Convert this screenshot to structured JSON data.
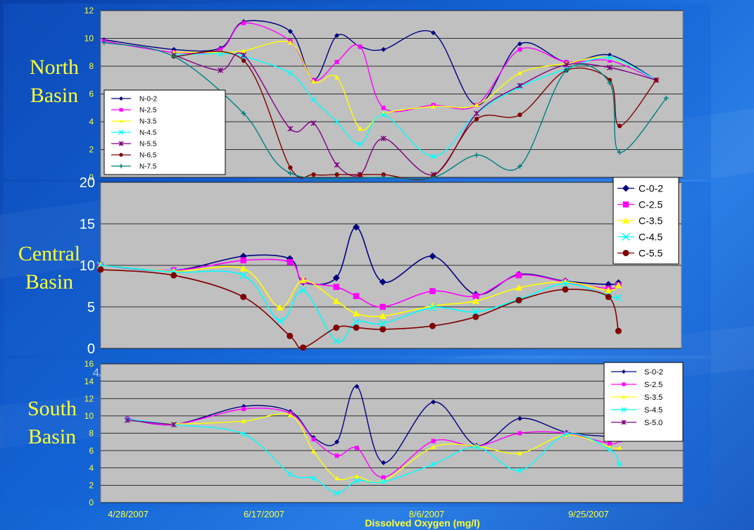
{
  "x_axis_title": "Dissolved Oxygen (mg/l)",
  "colors": {
    "plot_background": "#c0c0c0",
    "yellow_text": "#ffff33"
  },
  "chart_data": [
    {
      "type": "line",
      "id": "north",
      "panel_label": [
        "North",
        "Basin"
      ],
      "ylim": [
        0,
        12
      ],
      "yticks": [
        "0",
        "2",
        "4",
        "6",
        "8",
        "10",
        "12"
      ],
      "xlim_days": [
        0,
        175
      ],
      "xtick_labels": [
        "4/28/07",
        "6/17/07",
        "8/6/07",
        "9/25/07"
      ],
      "legend_position": "bottom-left",
      "x_dates": [
        "5/6/07",
        "5/20/07",
        "6/3/07",
        "6/17/07",
        "6/24/07",
        "7/1/07",
        "7/8/07",
        "7/15/07",
        "7/22/07",
        "7/29/07",
        "8/6/07",
        "8/19/07",
        "9/1/07",
        "9/15/07",
        "9/28/07",
        "10/12/07"
      ],
      "series": [
        {
          "name": "N-0-2",
          "color": "#000080",
          "marker": "diamond",
          "x": [
            "4/29/07",
            "5/20/07",
            "6/3/07",
            "6/10/07",
            "6/24/07",
            "7/1/07",
            "7/8/07",
            "7/15/07",
            "7/22/07",
            "8/6/07",
            "8/19/07",
            "9/1/07",
            "9/15/07",
            "9/28/07",
            "10/12/07"
          ],
          "values": [
            9.9,
            9.2,
            9.3,
            11.2,
            10.5,
            7.0,
            10.2,
            9.4,
            9.2,
            10.4,
            5.2,
            9.6,
            8.3,
            8.8,
            7.0
          ]
        },
        {
          "name": "N-2.5",
          "color": "#ff00ff",
          "marker": "square",
          "x": [
            "4/29/07",
            "5/20/07",
            "6/3/07",
            "6/10/07",
            "6/24/07",
            "7/1/07",
            "7/8/07",
            "7/15/07",
            "7/22/07",
            "8/6/07",
            "8/19/07",
            "9/1/07",
            "9/15/07",
            "9/28/07",
            "10/12/07"
          ],
          "values": [
            9.8,
            9.0,
            9.2,
            11.1,
            9.8,
            7.0,
            8.3,
            9.4,
            5.0,
            5.2,
            5.2,
            9.2,
            8.3,
            8.4,
            7.0
          ]
        },
        {
          "name": "N-3.5",
          "color": "#ffff00",
          "marker": "triangle",
          "x": [
            "5/20/07",
            "6/3/07",
            "6/10/07",
            "6/24/07",
            "7/1/07",
            "7/8/07",
            "7/15/07",
            "7/22/07",
            "8/6/07",
            "8/19/07",
            "9/1/07",
            "9/15/07",
            "9/28/07",
            "10/12/07"
          ],
          "values": [
            9.0,
            9.0,
            9.1,
            9.7,
            6.9,
            7.2,
            3.5,
            4.6,
            5.1,
            5.2,
            7.5,
            8.2,
            8.6,
            7.0
          ]
        },
        {
          "name": "N-4.5",
          "color": "#00ffff",
          "marker": "x",
          "x": [
            "5/20/07",
            "6/3/07",
            "6/10/07",
            "6/24/07",
            "7/1/07",
            "7/8/07",
            "7/15/07",
            "7/22/07",
            "8/6/07",
            "8/19/07",
            "9/1/07",
            "9/15/07",
            "9/28/07",
            "10/12/07"
          ],
          "values": [
            8.8,
            8.9,
            8.7,
            7.5,
            5.6,
            4.0,
            2.4,
            4.5,
            1.5,
            4.6,
            6.5,
            7.8,
            8.6,
            7.0
          ]
        },
        {
          "name": "N-5.5",
          "color": "#800080",
          "marker": "star",
          "x": [
            "5/20/07",
            "6/3/07",
            "6/10/07",
            "6/24/07",
            "7/1/07",
            "7/8/07",
            "7/15/07",
            "7/22/07",
            "8/6/07",
            "8/19/07",
            "9/1/07",
            "9/15/07",
            "9/28/07",
            "10/12/07"
          ],
          "values": [
            8.8,
            7.7,
            8.8,
            3.5,
            3.9,
            0.9,
            0.2,
            2.8,
            0.2,
            4.6,
            6.6,
            8.1,
            7.9,
            7.0
          ]
        },
        {
          "name": "N-6.5",
          "color": "#800000",
          "marker": "circle",
          "x": [
            "5/20/07",
            "6/10/07",
            "6/24/07",
            "7/1/07",
            "7/8/07",
            "7/15/07",
            "7/22/07",
            "8/6/07",
            "8/19/07",
            "9/1/07",
            "9/15/07",
            "9/28/07",
            "10/1/07",
            "10/12/07"
          ],
          "values": [
            8.7,
            8.4,
            0.7,
            0.2,
            0.2,
            0.2,
            0.2,
            0.1,
            4.2,
            4.5,
            7.7,
            7.0,
            3.7,
            7.0
          ]
        },
        {
          "name": "N-7.5",
          "color": "#008080",
          "marker": "plus",
          "x": [
            "4/29/07",
            "5/20/07",
            "6/10/07",
            "6/24/07",
            "7/22/07",
            "8/6/07",
            "8/19/07",
            "9/1/07",
            "9/15/07",
            "9/28/07",
            "10/1/07",
            "10/15/07"
          ],
          "values": [
            9.7,
            8.7,
            4.6,
            0.3,
            0.0,
            0.0,
            1.6,
            0.8,
            7.7,
            6.8,
            1.8,
            5.7
          ]
        }
      ]
    },
    {
      "type": "line",
      "id": "central",
      "panel_label": [
        "Central",
        "Basin"
      ],
      "ylim": [
        0,
        20
      ],
      "yticks": [
        "0",
        "5",
        "10",
        "15",
        "20"
      ],
      "xlim_days": [
        0,
        175
      ],
      "xtick_labels": [
        "4/28/07",
        "6/17/07",
        "8/6/07",
        "9/25/07"
      ],
      "legend_position": "top-right",
      "series": [
        {
          "name": "C-0-2",
          "color": "#000080",
          "marker": "diamond",
          "x": [
            "4/28/07",
            "5/20/07",
            "6/10/07",
            "6/24/07",
            "6/28/07",
            "7/8/07",
            "7/14/07",
            "7/22/07",
            "8/6/07",
            "8/19/07",
            "9/1/07",
            "9/15/07",
            "9/28/07",
            "10/1/07"
          ],
          "values": [
            10.0,
            9.4,
            11.1,
            10.8,
            8.0,
            8.5,
            14.6,
            8.0,
            11.1,
            6.5,
            8.9,
            8.1,
            7.7,
            7.9
          ]
        },
        {
          "name": "C-2.5",
          "color": "#ff00ff",
          "marker": "square",
          "x": [
            "4/28/07",
            "5/20/07",
            "6/10/07",
            "6/24/07",
            "6/28/07",
            "7/8/07",
            "7/14/07",
            "7/22/07",
            "8/6/07",
            "8/19/07",
            "9/1/07",
            "9/15/07",
            "9/28/07",
            "10/1/07"
          ],
          "values": [
            10.0,
            9.4,
            10.6,
            10.4,
            8.1,
            7.4,
            6.3,
            5.0,
            6.9,
            6.3,
            8.8,
            8.0,
            7.2,
            7.6
          ]
        },
        {
          "name": "C-3.5",
          "color": "#ffff00",
          "marker": "triangle",
          "x": [
            "4/28/07",
            "5/20/07",
            "6/10/07",
            "6/21/07",
            "6/28/07",
            "7/8/07",
            "7/14/07",
            "7/22/07",
            "8/6/07",
            "8/19/07",
            "9/1/07",
            "9/15/07",
            "9/28/07",
            "10/1/07"
          ],
          "values": [
            10.0,
            9.3,
            9.6,
            4.9,
            8.2,
            5.7,
            4.2,
            3.9,
            5.1,
            5.7,
            7.3,
            8.0,
            7.0,
            7.6
          ]
        },
        {
          "name": "C-4.5",
          "color": "#00ffff",
          "marker": "x",
          "x": [
            "4/28/07",
            "5/20/07",
            "6/10/07",
            "6/21/07",
            "6/28/07",
            "7/8/07",
            "7/14/07",
            "7/22/07",
            "8/6/07",
            "8/19/07",
            "9/1/07",
            "9/15/07",
            "9/28/07",
            "10/1/07"
          ],
          "values": [
            10.0,
            9.2,
            8.8,
            3.3,
            7.0,
            0.9,
            3.2,
            3.0,
            4.9,
            4.4,
            5.9,
            7.8,
            6.3,
            6.1
          ]
        },
        {
          "name": "C-5.5",
          "color": "#800000",
          "marker": "circle",
          "x": [
            "4/28/07",
            "5/20/07",
            "6/10/07",
            "6/24/07",
            "6/28/07",
            "7/8/07",
            "7/14/07",
            "7/22/07",
            "8/6/07",
            "8/19/07",
            "9/1/07",
            "9/15/07",
            "9/28/07",
            "10/1/07"
          ],
          "values": [
            9.5,
            8.8,
            6.2,
            1.5,
            0.1,
            2.5,
            2.5,
            2.3,
            2.7,
            3.8,
            5.8,
            7.1,
            6.2,
            2.1
          ]
        }
      ]
    },
    {
      "type": "line",
      "id": "south",
      "panel_label": [
        "South",
        "Basin"
      ],
      "ylim": [
        0,
        16
      ],
      "yticks": [
        "0",
        "2",
        "4",
        "6",
        "8",
        "10",
        "12",
        "14",
        "16"
      ],
      "xlim_days": [
        0,
        175
      ],
      "xtick_labels": [
        "4/28/2007",
        "6/17/2007",
        "8/6/2007",
        "9/25/2007"
      ],
      "legend_position": "top-right",
      "series": [
        {
          "name": "S-0-2",
          "color": "#000080",
          "marker": "diamond",
          "x": [
            "5/6/07",
            "5/20/07",
            "6/10/07",
            "6/24/07",
            "7/1/07",
            "7/8/07",
            "7/14/07",
            "7/22/07",
            "8/6/07",
            "8/19/07",
            "9/1/07",
            "9/15/07",
            "9/28/07",
            "10/1/07"
          ],
          "values": [
            9.7,
            9.0,
            11.1,
            10.5,
            7.5,
            7.0,
            13.4,
            4.6,
            11.6,
            6.6,
            9.7,
            8.1,
            7.6,
            7.3
          ]
        },
        {
          "name": "S-2.5",
          "color": "#ff00ff",
          "marker": "square",
          "x": [
            "5/6/07",
            "5/20/07",
            "6/10/07",
            "6/24/07",
            "7/1/07",
            "7/8/07",
            "7/14/07",
            "7/22/07",
            "8/6/07",
            "8/19/07",
            "9/1/07",
            "9/15/07",
            "9/28/07",
            "10/1/07"
          ],
          "values": [
            9.7,
            9.0,
            10.8,
            10.3,
            7.3,
            5.4,
            6.3,
            2.9,
            7.1,
            6.5,
            8.0,
            8.0,
            6.8,
            7.2
          ]
        },
        {
          "name": "S-3.5",
          "color": "#ffff00",
          "marker": "triangle",
          "x": [
            "5/6/07",
            "5/20/07",
            "6/10/07",
            "6/24/07",
            "7/1/07",
            "7/8/07",
            "7/14/07",
            "7/22/07",
            "8/6/07",
            "8/19/07",
            "9/1/07",
            "9/15/07",
            "9/28/07",
            "10/1/07"
          ],
          "values": [
            9.6,
            9.1,
            9.4,
            10.1,
            5.9,
            2.8,
            3.0,
            2.5,
            6.4,
            6.5,
            5.7,
            7.8,
            6.4,
            6.3
          ]
        },
        {
          "name": "S-4.5",
          "color": "#00ffff",
          "marker": "x",
          "x": [
            "5/6/07",
            "5/20/07",
            "6/10/07",
            "6/24/07",
            "7/1/07",
            "7/8/07",
            "7/14/07",
            "7/22/07",
            "8/6/07",
            "8/19/07",
            "9/1/07",
            "9/15/07",
            "9/28/07",
            "10/1/07"
          ],
          "values": [
            9.6,
            9.0,
            7.9,
            3.3,
            2.8,
            1.1,
            2.5,
            2.4,
            4.4,
            6.4,
            3.7,
            7.9,
            6.1,
            4.4
          ]
        },
        {
          "name": "S-5.0",
          "color": "#800080",
          "marker": "star",
          "x": [
            "5/6/07",
            "5/20/07"
          ],
          "values": [
            9.5,
            9.0
          ]
        }
      ]
    }
  ]
}
